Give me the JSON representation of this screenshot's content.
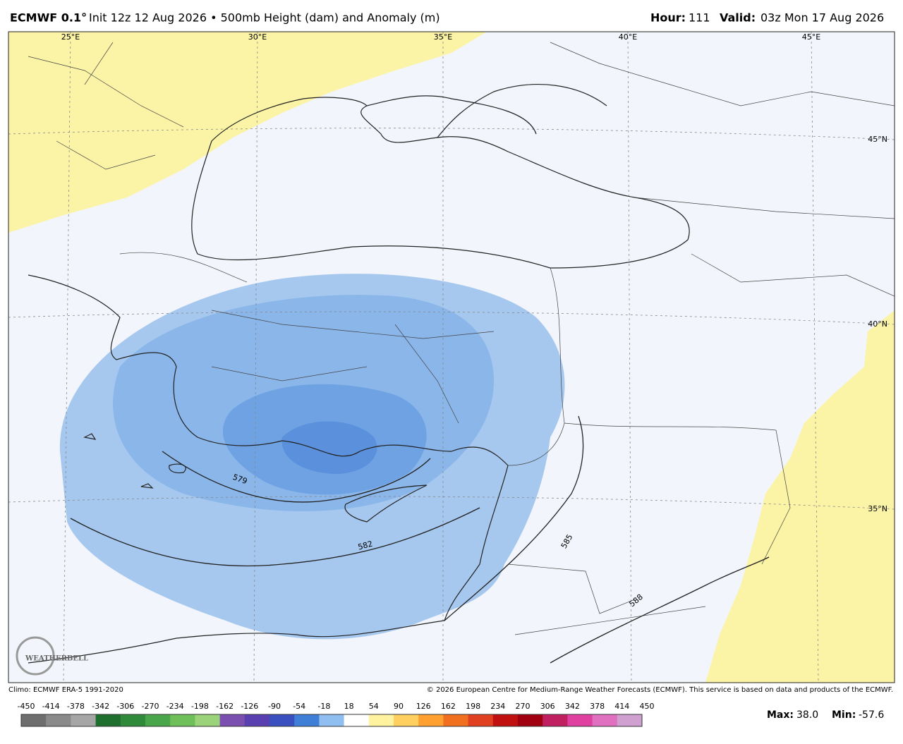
{
  "header": {
    "model": "ECMWF 0.1°",
    "description": "Init 12z 12 Aug 2026 • 500mb Height (dam) and Anomaly (m)",
    "hour_label": "Hour:",
    "hour": "111",
    "valid_label": "Valid:",
    "valid": "03z Mon 17 Aug 2026"
  },
  "map": {
    "longitude_labels": [
      "25°E",
      "30°E",
      "35°E",
      "40°E",
      "45°E"
    ],
    "latitude_labels": [
      "45°N",
      "40°N",
      "35°N"
    ],
    "contour_labels": [
      "579",
      "582",
      "585",
      "588"
    ],
    "logo": "WEATHERBELL"
  },
  "footer": {
    "climo": "Climo: ECMWF ERA-5 1991-2020",
    "copyright": "© 2026 European Centre for Medium-Range Weather Forecasts (ECMWF). This service is based on data and products of the ECMWF."
  },
  "colorbar": {
    "ticks": [
      "-450",
      "-414",
      "-378",
      "-342",
      "-306",
      "-270",
      "-234",
      "-198",
      "-162",
      "-126",
      "-90",
      "-54",
      "-18",
      "18",
      "54",
      "90",
      "126",
      "162",
      "198",
      "234",
      "270",
      "306",
      "342",
      "378",
      "414",
      "450"
    ],
    "colors": [
      "#6e6e6e",
      "#8a8a8a",
      "#a6a6a6",
      "#1f6f2e",
      "#2f8a3a",
      "#4aa64a",
      "#6fbf5a",
      "#9bd37a",
      "#7a4fb0",
      "#5a3fb0",
      "#3a4fc0",
      "#3f7fd8",
      "#8fbff0",
      "#ffffff",
      "#fff3a0",
      "#ffd060",
      "#ffa030",
      "#f07020",
      "#e04020",
      "#c01010",
      "#a00010",
      "#c02060",
      "#e040a0",
      "#e070c0",
      "#d0a0d0"
    ],
    "max_label": "Max:",
    "max": "38.0",
    "min_label": "Min:",
    "min": "-57.6"
  }
}
